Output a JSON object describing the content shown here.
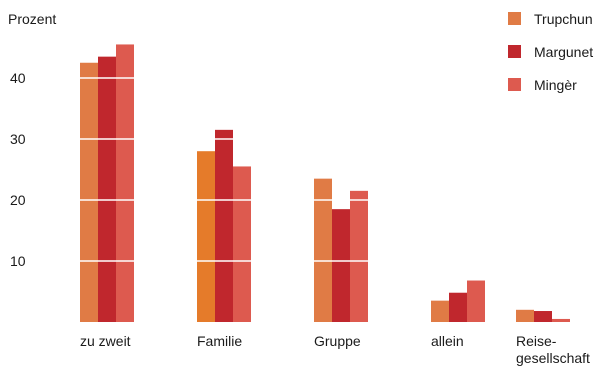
{
  "chart_data": {
    "type": "bar",
    "ylabel": "Prozent",
    "xlabel": "",
    "title": "",
    "ylim": [
      0,
      50
    ],
    "yticks": [
      10,
      20,
      30,
      40
    ],
    "grid": "white lines across bars at tick values",
    "legend_position": "top-right",
    "categories": [
      [
        "zu zweit"
      ],
      [
        "Familie"
      ],
      [
        "Gruppe"
      ],
      [
        "allein"
      ],
      [
        "Reise-",
        "gesellschaft"
      ]
    ],
    "series": [
      {
        "name": "Trupchun",
        "color": "#e07b45",
        "values": [
          42.5,
          28.0,
          23.5,
          3.5,
          2.0
        ]
      },
      {
        "name": "Margunet",
        "color": "#c0272d",
        "values": [
          43.5,
          31.5,
          18.5,
          4.8,
          1.8
        ]
      },
      {
        "name": "Mingèr",
        "color": "#dd5a4f",
        "values": [
          45.5,
          25.5,
          21.5,
          6.8,
          0.5
        ]
      }
    ],
    "highlight": {
      "category_index": 1,
      "series_index": 0,
      "color": "#e57b2a"
    }
  }
}
